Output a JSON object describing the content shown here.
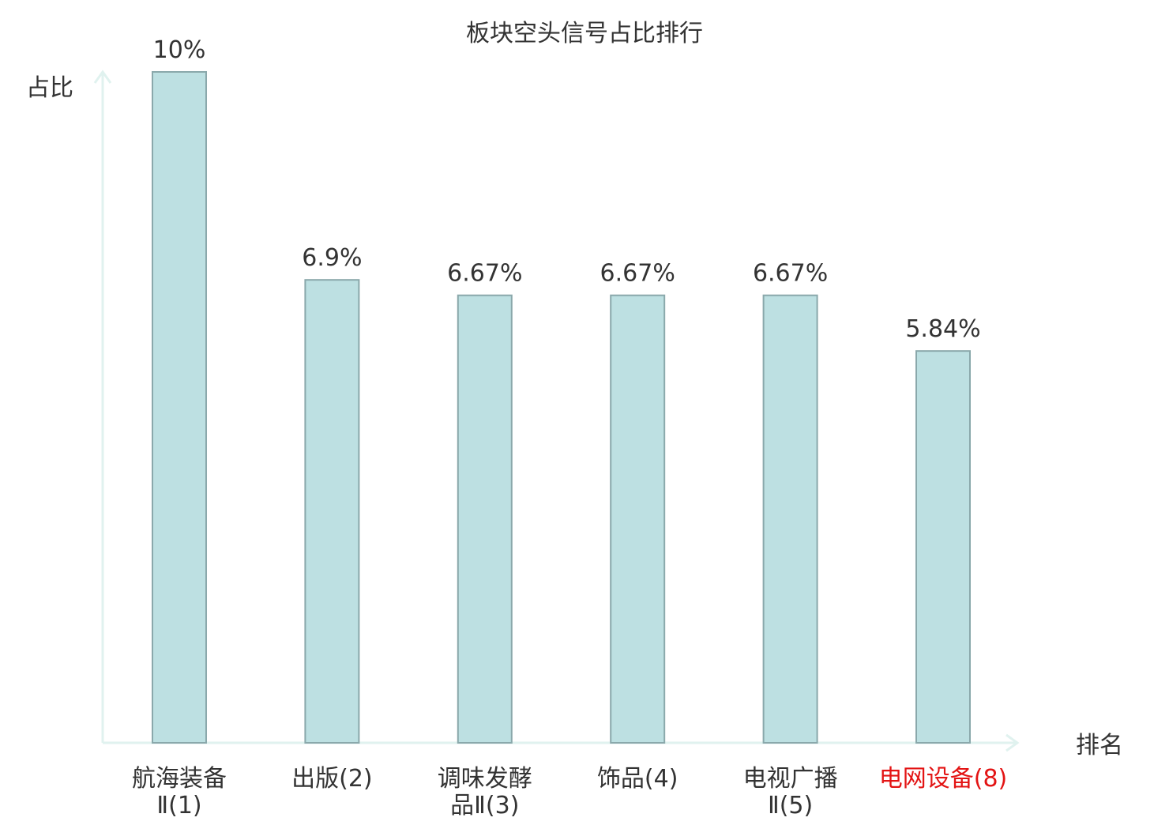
{
  "chart_data": {
    "type": "bar",
    "title": "板块空头信号占比排行",
    "ylabel": "占比",
    "xlabel": "排名",
    "unit": "%",
    "ylim": [
      0,
      10
    ],
    "grid": false,
    "categories": [
      [
        "航海装备",
        "Ⅱ(1)"
      ],
      [
        "出版(2)"
      ],
      [
        "调味发酵",
        "品Ⅱ(3)"
      ],
      [
        "饰品(4)"
      ],
      [
        "电视广播",
        "Ⅱ(5)"
      ],
      [
        "电网设备(8)"
      ]
    ],
    "values": [
      10,
      6.9,
      6.67,
      6.67,
      6.67,
      5.84
    ],
    "value_labels": [
      "10%",
      "6.9%",
      "6.67%",
      "6.67%",
      "6.67%",
      "5.84%"
    ],
    "highlight_index": 5,
    "colors": {
      "bar_fill": "#bde0e2",
      "bar_stroke": "#8aa8ab",
      "axis": "#e0f2ef",
      "text": "#333333",
      "highlight_text": "#e31414"
    }
  }
}
